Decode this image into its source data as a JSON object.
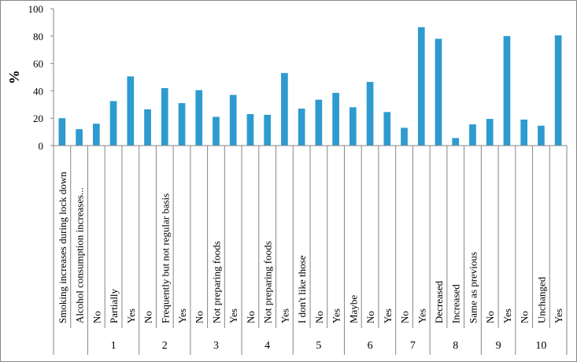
{
  "chart_data": {
    "type": "bar",
    "ylabel": "%",
    "ylim": [
      0,
      100
    ],
    "yticks": [
      0,
      20,
      40,
      60,
      80,
      100
    ],
    "grid": false,
    "bar_color": "#2E9BD0",
    "categories": [
      "Smoking increases during lock down",
      "Alcohol consumption increases...",
      "No",
      "Partially",
      "Yes",
      "No",
      "Frequently but not regular basis",
      "Yes",
      "No",
      "Not preparing foods",
      "Yes",
      "No",
      "Not preparing foods",
      "Yes",
      "I don't like those",
      "No",
      "Yes",
      "Maybe",
      "No",
      "Yes",
      "No",
      "Yes",
      "Decreased",
      "Increased",
      "Same as previous",
      "No",
      "Yes",
      "No",
      "Unchanged",
      "Yes"
    ],
    "values": [
      20,
      12,
      16,
      32.5,
      50.5,
      26.5,
      42,
      31,
      40.5,
      21,
      37,
      23,
      22.5,
      53,
      27,
      33.5,
      38.5,
      28,
      46.5,
      24.5,
      13,
      86.5,
      78,
      5.5,
      15.5,
      19.5,
      80,
      19,
      14.5,
      80.5
    ],
    "groups": [
      {
        "label": "",
        "size": 2
      },
      {
        "label": "1",
        "size": 3
      },
      {
        "label": "2",
        "size": 3
      },
      {
        "label": "3",
        "size": 3
      },
      {
        "label": "4",
        "size": 3
      },
      {
        "label": "5",
        "size": 3
      },
      {
        "label": "6",
        "size": 3
      },
      {
        "label": "7",
        "size": 2
      },
      {
        "label": "8",
        "size": 3
      },
      {
        "label": "9",
        "size": 2
      },
      {
        "label": "10",
        "size": 3
      }
    ]
  }
}
